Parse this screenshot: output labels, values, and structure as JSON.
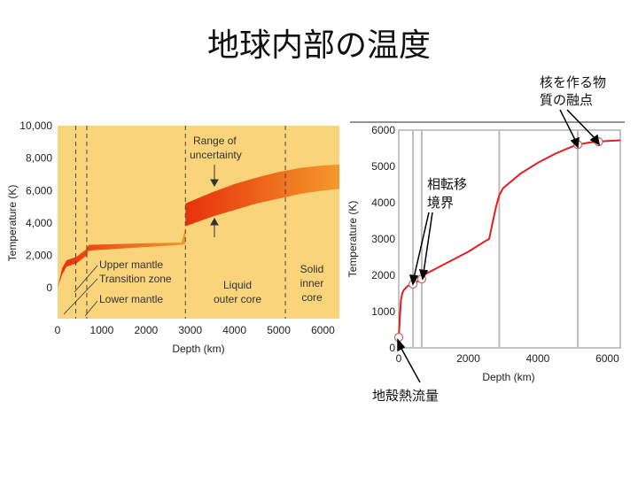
{
  "title": "地球内部の温度",
  "annotations": {
    "core_melting_point": [
      "核を作る物",
      "質の融点"
    ],
    "phase_transition": [
      "相転移",
      "境界"
    ],
    "crustal_heat_flow": "地殻熱流量"
  },
  "chart_data": [
    {
      "type": "area",
      "title": "",
      "xlabel": "Depth (km)",
      "ylabel": "Temperature (K)",
      "xlim": [
        0,
        6371
      ],
      "ylim": [
        -1900,
        10000
      ],
      "xticks": [
        "0",
        "1000",
        "2000",
        "3000",
        "4000",
        "5000",
        "6000"
      ],
      "yticks": [
        "0",
        "2,000",
        "4,000",
        "6,000",
        "8,000",
        "10,000"
      ],
      "grid": false,
      "background": "#f9d47a",
      "range_color": "#e8540c",
      "boundaries_km": [
        410,
        660,
        2890,
        5150
      ],
      "mantle_band": {
        "x": [
          0,
          100,
          200,
          410,
          420,
          660,
          700,
          2800,
          2890
        ],
        "lower": [
          0,
          800,
          1300,
          1500,
          1500,
          2000,
          2300,
          2650,
          2700
        ],
        "upper": [
          0,
          1200,
          1700,
          1900,
          1900,
          2400,
          2650,
          2800,
          3700
        ]
      },
      "core_band": {
        "x": [
          2890,
          3500,
          4000,
          4500,
          5000,
          5500,
          6000,
          6371
        ],
        "lower": [
          3800,
          4400,
          4800,
          5200,
          5500,
          5800,
          6000,
          6100
        ],
        "upper": [
          5200,
          5900,
          6400,
          6800,
          7150,
          7400,
          7550,
          7600
        ]
      },
      "labels": {
        "range": [
          "Range of",
          "uncertainty"
        ],
        "upper_mantle": "Upper mantle",
        "transition_zone": "Transition zone",
        "lower_mantle": "Lower mantle",
        "outer_core": [
          "Liquid",
          "outer core"
        ],
        "inner_core": [
          "Solid",
          "inner",
          "core"
        ]
      }
    },
    {
      "type": "line",
      "title": "",
      "xlabel": "Depth (km)",
      "ylabel": "Temperature (K)",
      "xlim": [
        0,
        6371
      ],
      "ylim": [
        0,
        6000
      ],
      "xticks": [
        "0",
        "2000",
        "4000",
        "6000"
      ],
      "yticks": [
        "0",
        "1000",
        "2000",
        "3000",
        "4000",
        "5000",
        "6000"
      ],
      "grid": false,
      "line_color": "#e02020",
      "boundaries_km": [
        410,
        660,
        2890,
        5150
      ],
      "series": [
        {
          "x": [
            0,
            30,
            60,
            100,
            150,
            200,
            250,
            300,
            350,
            400,
            410,
            660,
            700,
            1000,
            1500,
            2000,
            2500,
            2600,
            2700,
            2800,
            2890,
            3000,
            3500,
            4000,
            4500,
            5000,
            5150,
            5500,
            6000,
            6371
          ],
          "values": [
            290,
            800,
            1300,
            1500,
            1600,
            1650,
            1700,
            1720,
            1740,
            1760,
            1760,
            1900,
            2000,
            2150,
            2400,
            2650,
            2950,
            3000,
            3450,
            3900,
            4200,
            4400,
            4800,
            5100,
            5350,
            5550,
            5600,
            5660,
            5700,
            5720
          ]
        }
      ],
      "markers_km": [
        0,
        410,
        660,
        5150,
        5750
      ]
    }
  ]
}
